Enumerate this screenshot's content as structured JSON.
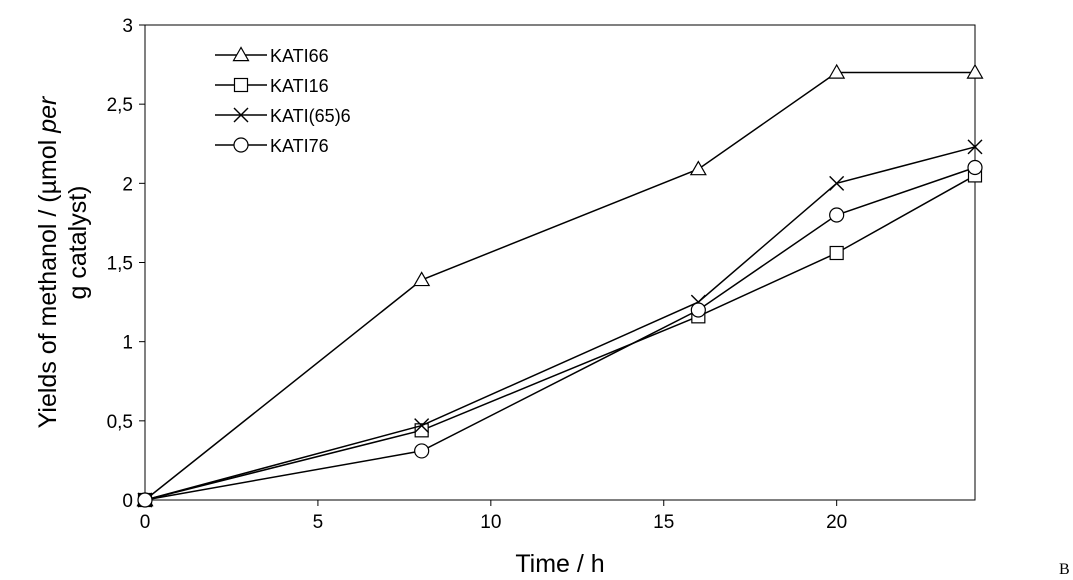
{
  "chart_data": {
    "type": "line",
    "xlabel": "Time / h",
    "ylabel_line1_prefix": "Yields of methanol /  (µmol ",
    "ylabel_line1_italic": "per",
    "ylabel_line2": "g catalyst)",
    "xlim": [
      0,
      24
    ],
    "ylim": [
      0,
      3
    ],
    "x_ticks": [
      0,
      5,
      10,
      15,
      20
    ],
    "x_tick_labels": [
      "0",
      "5",
      "10",
      "15",
      "20"
    ],
    "y_ticks": [
      0,
      0.5,
      1,
      1.5,
      2,
      2.5,
      3
    ],
    "y_tick_labels": [
      "0",
      "0,5",
      "1",
      "1,5",
      "2",
      "2,5",
      "3"
    ],
    "grid": false,
    "legend_position": "top-left",
    "x": [
      0,
      8,
      16,
      20,
      24
    ],
    "series": [
      {
        "name": "KATI66",
        "marker": "triangle",
        "values": [
          0,
          1.39,
          2.09,
          2.7,
          2.7
        ]
      },
      {
        "name": "KATI16",
        "marker": "square",
        "values": [
          0,
          0.44,
          1.16,
          1.56,
          2.05
        ]
      },
      {
        "name": "KATI(65)6",
        "marker": "x",
        "values": [
          0,
          0.47,
          1.25,
          2.0,
          2.23
        ]
      },
      {
        "name": "KATI76",
        "marker": "circle",
        "values": [
          0,
          0.31,
          1.2,
          1.8,
          2.1
        ]
      }
    ]
  },
  "corner_label": "B",
  "colors": {
    "line": "#000000",
    "background": "#ffffff"
  }
}
